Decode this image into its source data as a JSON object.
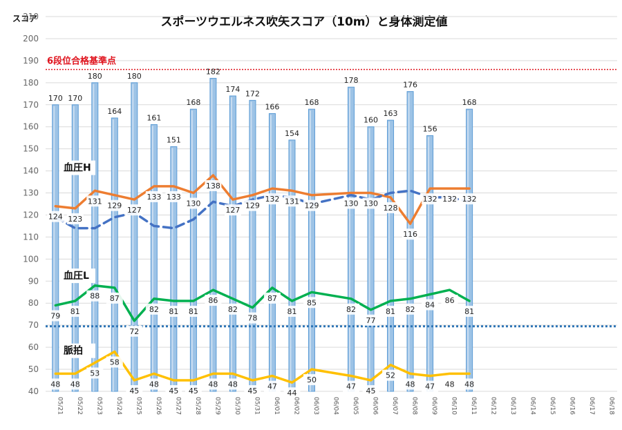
{
  "chart_data": {
    "type": "bar",
    "title": "スポーツウエルネス吹矢スコア（10m）と身体測定値",
    "ylabel": "スコア",
    "ylim": [
      40,
      210
    ],
    "yticks": [
      40,
      50,
      60,
      70,
      80,
      90,
      100,
      110,
      120,
      130,
      140,
      150,
      160,
      170,
      180,
      190,
      200,
      210
    ],
    "grid": true,
    "categories": [
      "05/21",
      "05/22",
      "05/23",
      "05/24",
      "05/25",
      "05/26",
      "05/27",
      "05/28",
      "05/29",
      "05/30",
      "05/31",
      "06/01",
      "06/02",
      "06/03",
      "06/04",
      "06/05",
      "06/06",
      "06/07",
      "06/08",
      "06/09",
      "06/10",
      "06/11",
      "06/12",
      "06/13",
      "06/14",
      "06/15",
      "06/16",
      "06/17",
      "06/18"
    ],
    "score": {
      "values": [
        170,
        170,
        180,
        164,
        180,
        161,
        151,
        168,
        182,
        174,
        172,
        166,
        154,
        168,
        null,
        178,
        160,
        163,
        176,
        156,
        null,
        168,
        null,
        null,
        null,
        null,
        null,
        null,
        null
      ],
      "color": "#9dc3e6"
    },
    "series": [
      {
        "name": "血圧H",
        "style": "line",
        "color": "#ed7d31",
        "values": [
          124,
          123,
          131,
          129,
          127,
          133,
          133,
          130,
          138,
          127,
          129,
          132,
          131,
          129,
          null,
          130,
          130,
          128,
          116,
          132,
          132,
          132,
          null,
          null,
          null,
          null,
          null,
          null,
          null
        ]
      },
      {
        "style": "dashed",
        "color": "#4472c4",
        "values": [
          119,
          114,
          114,
          119,
          121,
          115,
          114,
          118,
          126,
          124,
          127,
          129,
          128,
          125,
          127,
          129,
          127,
          130,
          131,
          128,
          128,
          126,
          null,
          null,
          null,
          null,
          null,
          null,
          null
        ]
      },
      {
        "name": "血圧L",
        "style": "line",
        "color": "#00b050",
        "values": [
          79,
          81,
          88,
          87,
          72,
          82,
          81,
          81,
          86,
          82,
          78,
          87,
          81,
          85,
          null,
          82,
          77,
          81,
          82,
          84,
          86,
          81,
          null,
          null,
          null,
          null,
          null,
          null,
          null
        ]
      },
      {
        "name": "脈拍",
        "style": "line",
        "color": "#ffc000",
        "values": [
          48,
          48,
          53,
          58,
          45,
          48,
          45,
          45,
          48,
          48,
          45,
          47,
          44,
          50,
          null,
          47,
          45,
          52,
          48,
          47,
          48,
          48,
          null,
          null,
          null,
          null,
          null,
          null,
          null
        ]
      }
    ],
    "reference_lines": [
      {
        "value": 186,
        "label": "6段位合格基準点",
        "color": "#e0141e",
        "style": "dotted"
      },
      {
        "value": 69.5,
        "label": "",
        "color": "#2e75b6",
        "style": "dotted"
      }
    ]
  }
}
